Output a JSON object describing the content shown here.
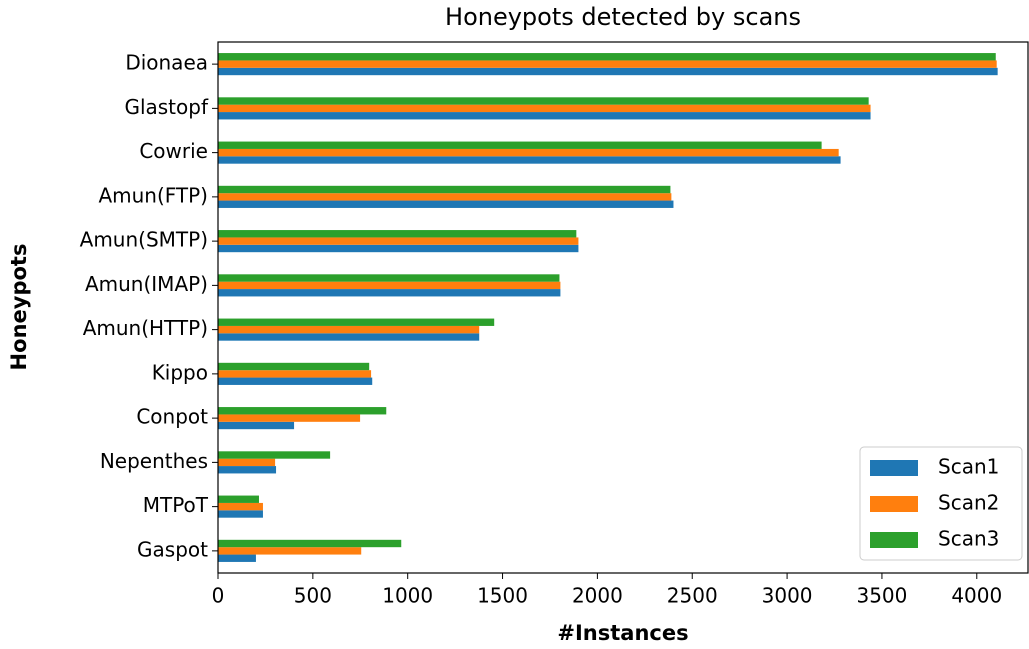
{
  "chart_data": {
    "type": "barh",
    "title": "Honeypots detected by scans",
    "xlabel": "#Instances",
    "ylabel": "Honeypots",
    "categories": [
      "Dionaea",
      "Glastopf",
      "Cowrie",
      "Amun(FTP)",
      "Amun(SMTP)",
      "Amun(IMAP)",
      "Amun(HTTP)",
      "Kippo",
      "Conpot",
      "Nepenthes",
      "MTPoT",
      "Gaspot"
    ],
    "series": [
      {
        "name": "Scan1",
        "color": "#1f77b4",
        "values": [
          4110,
          3440,
          3282,
          2401,
          1900,
          1805,
          1377,
          813,
          401,
          306,
          237,
          200
        ]
      },
      {
        "name": "Scan2",
        "color": "#ff7f0e",
        "values": [
          4105,
          3440,
          3272,
          2390,
          1900,
          1805,
          1377,
          807,
          749,
          301,
          237,
          755
        ]
      },
      {
        "name": "Scan3",
        "color": "#2ca02c",
        "values": [
          4100,
          3430,
          3182,
          2385,
          1889,
          1800,
          1456,
          797,
          887,
          591,
          216,
          966
        ]
      }
    ],
    "xlim": [
      0,
      4270
    ],
    "xticks": [
      0,
      500,
      1000,
      1500,
      2000,
      2500,
      3000,
      3500,
      4000
    ],
    "legend": "lower right"
  }
}
